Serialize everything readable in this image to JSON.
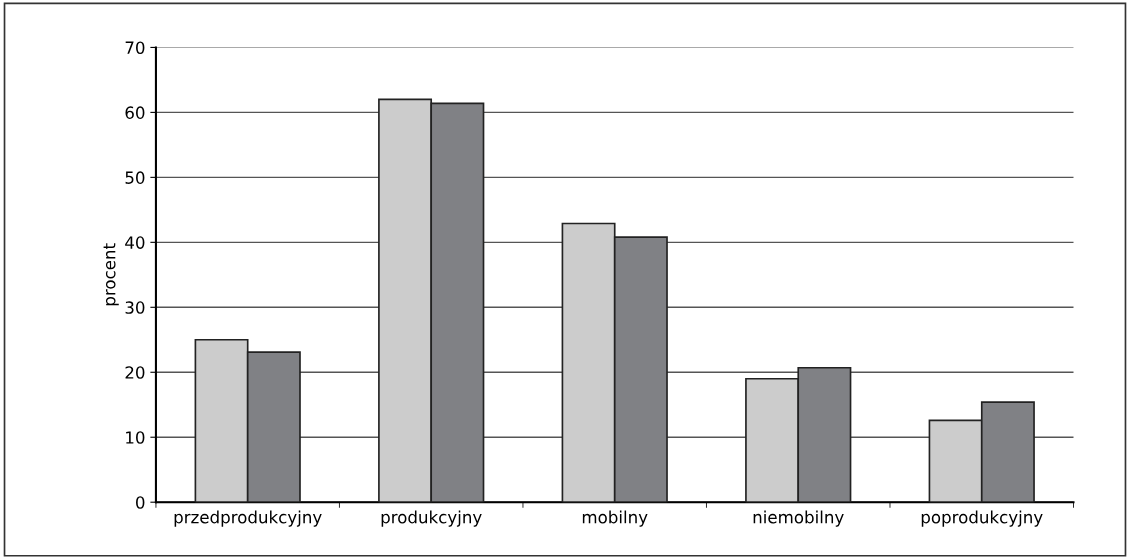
{
  "chart_data": {
    "type": "bar",
    "ylabel": "procent",
    "categories": [
      "przedprodukcyjny",
      "produkcyjny",
      "mobilny",
      "niemobilny",
      "poprodukcyjny"
    ],
    "series": [
      {
        "color": "#cccccc",
        "values": [
          25.0,
          62.0,
          42.9,
          19.0,
          12.6
        ]
      },
      {
        "color": "#808185",
        "values": [
          23.1,
          61.4,
          40.8,
          20.7,
          15.4
        ]
      }
    ],
    "ylim": [
      0,
      70
    ],
    "yticks": [
      0,
      10,
      20,
      30,
      40,
      50,
      60,
      70
    ],
    "grid": "y"
  }
}
